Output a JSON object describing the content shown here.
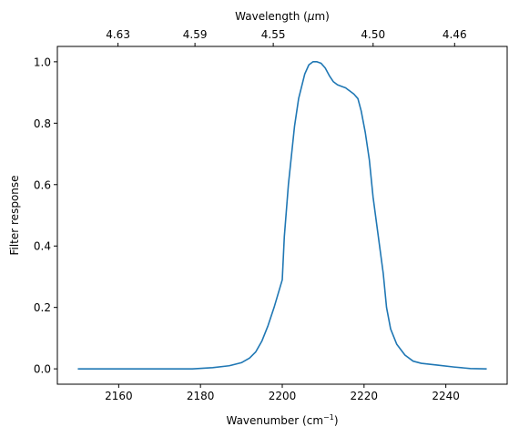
{
  "chart_data": {
    "type": "line",
    "xlabel_main": "Wavenumber (cm",
    "xlabel_sup": "−1",
    "xlabel_end": ")",
    "top_xlabel_main": "Wavelength (",
    "top_xlabel_mu": "μ",
    "top_xlabel_end": "m)",
    "ylabel": "Filter response",
    "xlim": [
      2145,
      2255
    ],
    "ylim": [
      -0.05,
      1.05
    ],
    "grid": false,
    "legend": "none",
    "colors": {
      "line": "#1f77b4",
      "axes": "#000000"
    },
    "x_ticks": [
      {
        "value": 2160,
        "label": "2160"
      },
      {
        "value": 2180,
        "label": "2180"
      },
      {
        "value": 2200,
        "label": "2200"
      },
      {
        "value": 2220,
        "label": "2220"
      },
      {
        "value": 2240,
        "label": "2240"
      }
    ],
    "y_ticks": [
      {
        "value": 0.0,
        "label": "0.0"
      },
      {
        "value": 0.2,
        "label": "0.2"
      },
      {
        "value": 0.4,
        "label": "0.4"
      },
      {
        "value": 0.6,
        "label": "0.6"
      },
      {
        "value": 0.8,
        "label": "0.8"
      },
      {
        "value": 1.0,
        "label": "1.0"
      }
    ],
    "top_ticks": [
      {
        "wavenumber": 2159.83,
        "label": "4.63"
      },
      {
        "wavenumber": 2178.65,
        "label": "4.59"
      },
      {
        "wavenumber": 2197.8,
        "label": "4.55"
      },
      {
        "wavenumber": 2222.22,
        "label": "4.50"
      },
      {
        "wavenumber": 2242.15,
        "label": "4.46"
      }
    ],
    "series": [
      {
        "x": [
          2150,
          2160,
          2170,
          2178,
          2183,
          2187,
          2190,
          2192,
          2193.5,
          2195,
          2196.5,
          2198,
          2200,
          2200.5,
          2201.5,
          2203,
          2204,
          2205.5,
          2206.5,
          2207.5,
          2208.5,
          2209.5,
          2210.5,
          2211.5,
          2212.5,
          2213.5,
          2214.5,
          2215.5,
          2216.5,
          2217.5,
          2218.5,
          2219.3,
          2220.3,
          2221.3,
          2222.2,
          2223.5,
          2224.7,
          2225.5,
          2226.5,
          2228,
          2230,
          2232,
          2234,
          2238,
          2242,
          2246,
          2250
        ],
        "y": [
          0.0,
          0.0,
          0.0,
          0.0,
          0.004,
          0.01,
          0.02,
          0.035,
          0.055,
          0.09,
          0.14,
          0.2,
          0.29,
          0.43,
          0.6,
          0.79,
          0.88,
          0.96,
          0.99,
          1.0,
          1.0,
          0.995,
          0.98,
          0.955,
          0.935,
          0.925,
          0.92,
          0.915,
          0.905,
          0.895,
          0.88,
          0.84,
          0.77,
          0.68,
          0.56,
          0.43,
          0.31,
          0.2,
          0.13,
          0.08,
          0.045,
          0.025,
          0.018,
          0.012,
          0.006,
          0.001,
          0.0
        ]
      }
    ]
  }
}
